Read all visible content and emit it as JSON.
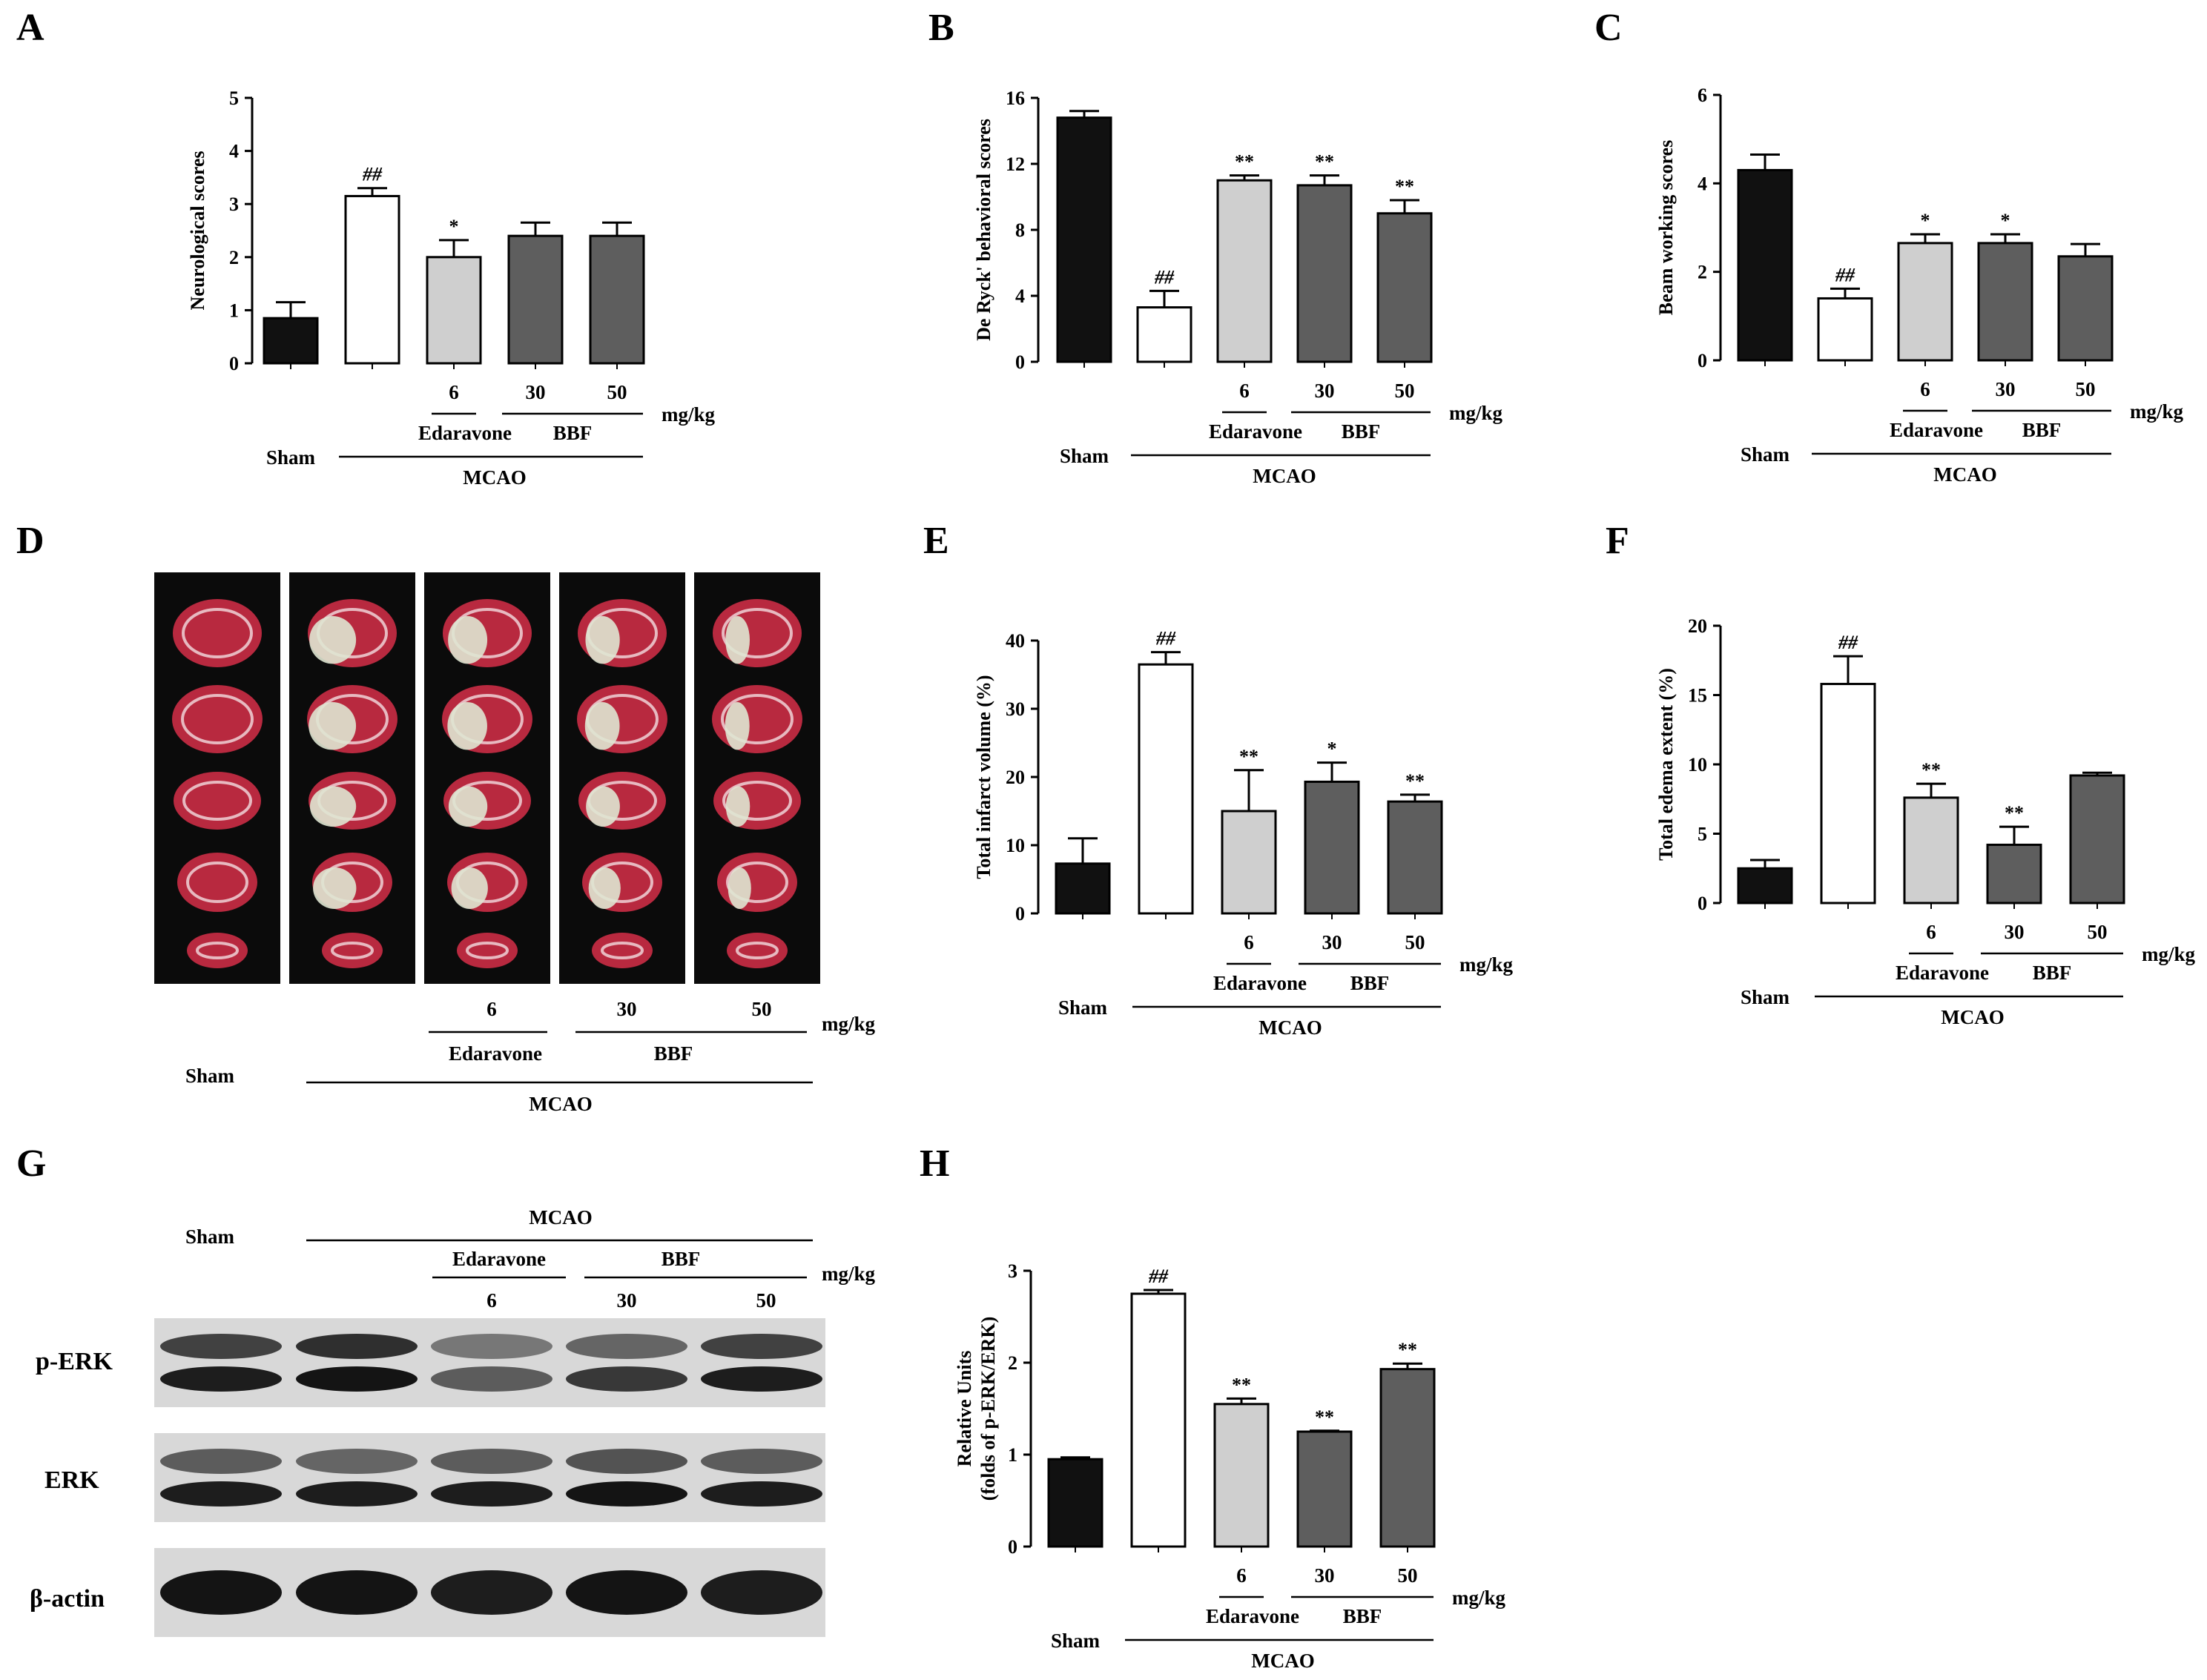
{
  "panels": {
    "A": "A",
    "B": "B",
    "C": "C",
    "D": "D",
    "E": "E",
    "F": "F",
    "G": "G",
    "H": "H"
  },
  "colors": {
    "sham": "#111111",
    "mcao": "#ffffff",
    "edaravone": "#cfcfcf",
    "bbf": "#5e5e5e"
  },
  "group_axis": {
    "sham": "Sham",
    "dose_edaravone": "6",
    "dose_bbf_low": "30",
    "dose_bbf_high": "50",
    "unit": "mg/kg",
    "edaravone": "Edaravone",
    "bbf": "BBF",
    "mcao": "MCAO"
  },
  "chart_data": [
    {
      "id": "A",
      "type": "bar",
      "ylabel": "Neurological scores",
      "ylim": [
        0,
        5
      ],
      "yticks": [
        "0",
        "1",
        "2",
        "3",
        "4",
        "5"
      ],
      "categories": [
        "Sham",
        "MCAO",
        "Edaravone 6",
        "BBF 30",
        "BBF 50"
      ],
      "values": [
        0.85,
        3.15,
        2.0,
        2.4,
        2.4
      ],
      "errors": [
        0.3,
        0.15,
        0.32,
        0.25,
        0.25
      ],
      "annotations": [
        "",
        "##",
        "*",
        "",
        ""
      ]
    },
    {
      "id": "B",
      "type": "bar",
      "ylabel": "De Ryck' behavioral scores",
      "ylim": [
        0,
        16
      ],
      "yticks": [
        "0",
        "4",
        "8",
        "12",
        "16"
      ],
      "categories": [
        "Sham",
        "MCAO",
        "Edaravone 6",
        "BBF 30",
        "BBF 50"
      ],
      "values": [
        14.8,
        3.3,
        11.0,
        10.7,
        9.0
      ],
      "errors": [
        0.4,
        1.0,
        0.3,
        0.6,
        0.8
      ],
      "annotations": [
        "",
        "##",
        "**",
        "**",
        "**"
      ]
    },
    {
      "id": "C",
      "type": "bar",
      "ylabel": "Beam working scores",
      "ylim": [
        0,
        6
      ],
      "yticks": [
        "0",
        "2",
        "4",
        "6"
      ],
      "categories": [
        "Sham",
        "MCAO",
        "Edaravone 6",
        "BBF 30",
        "BBF 50"
      ],
      "values": [
        4.3,
        1.4,
        2.65,
        2.65,
        2.35
      ],
      "errors": [
        0.35,
        0.22,
        0.2,
        0.2,
        0.28
      ],
      "annotations": [
        "",
        "##",
        "*",
        "*",
        ""
      ]
    },
    {
      "id": "E",
      "type": "bar",
      "ylabel": "Total infarct volume (%)",
      "ylim": [
        0,
        40
      ],
      "yticks": [
        "0",
        "10",
        "20",
        "30",
        "40"
      ],
      "categories": [
        "Sham",
        "MCAO",
        "Edaravone 6",
        "BBF 30",
        "BBF 50"
      ],
      "values": [
        7.3,
        36.5,
        15.0,
        19.3,
        16.4
      ],
      "errors": [
        3.7,
        1.8,
        6.0,
        2.8,
        1.0
      ],
      "annotations": [
        "",
        "##",
        "**",
        "*",
        "**"
      ]
    },
    {
      "id": "F",
      "type": "bar",
      "ylabel": "Total edema extent (%)",
      "ylim": [
        0,
        20
      ],
      "yticks": [
        "0",
        "5",
        "10",
        "15",
        "20"
      ],
      "categories": [
        "Sham",
        "MCAO",
        "Edaravone 6",
        "BBF 30",
        "BBF 50"
      ],
      "values": [
        2.5,
        15.8,
        7.6,
        4.2,
        9.2
      ],
      "errors": [
        0.6,
        2.0,
        1.0,
        1.3,
        0.2
      ],
      "annotations": [
        "",
        "##",
        "**",
        "**",
        ""
      ]
    },
    {
      "id": "H",
      "type": "bar",
      "ylabel": "Relative Units",
      "ylabel2": "(folds of p-ERK/ERK)",
      "ylim": [
        0,
        3
      ],
      "yticks": [
        "0",
        "1",
        "2",
        "3"
      ],
      "categories": [
        "Sham",
        "MCAO",
        "Edaravone 6",
        "BBF 30",
        "BBF 50"
      ],
      "values": [
        0.95,
        2.75,
        1.55,
        1.25,
        1.93
      ],
      "errors": [
        0.02,
        0.04,
        0.06,
        0.01,
        0.06
      ],
      "annotations": [
        "",
        "##",
        "**",
        "**",
        "**"
      ]
    }
  ],
  "blot": {
    "rows": [
      "p-ERK",
      "ERK",
      "β-actin"
    ]
  }
}
